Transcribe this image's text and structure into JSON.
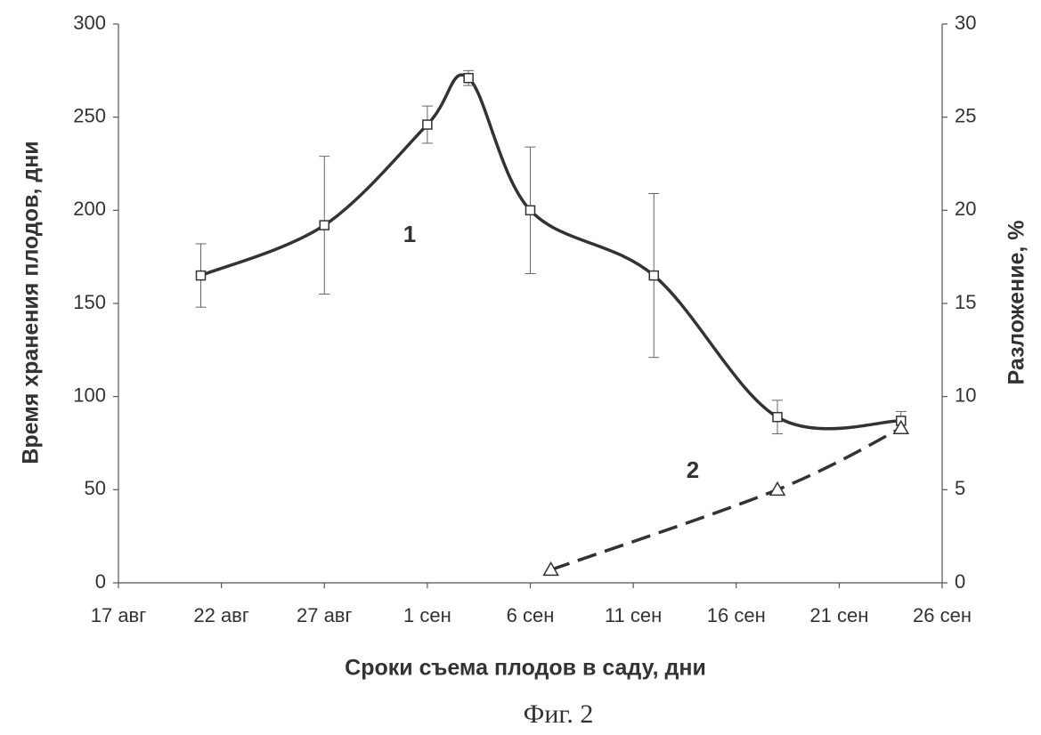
{
  "chart_data": {
    "type": "line",
    "xlabel": "Сроки съема плодов в саду, дни",
    "ylabel": "Время хранения плодов, дни",
    "y2label": "Разложение, %",
    "caption": "Фиг. 2",
    "xlim": [
      "08-17",
      "09-26"
    ],
    "xticks": [
      {
        "value": "08-17",
        "label": "17 авг"
      },
      {
        "value": "08-22",
        "label": "22 авг"
      },
      {
        "value": "08-27",
        "label": "27 авг"
      },
      {
        "value": "09-01",
        "label": "1 сен"
      },
      {
        "value": "09-06",
        "label": "6 сен"
      },
      {
        "value": "09-11",
        "label": "11 сен"
      },
      {
        "value": "09-16",
        "label": "16 сен"
      },
      {
        "value": "09-21",
        "label": "21 сен"
      },
      {
        "value": "09-26",
        "label": "26 сен"
      }
    ],
    "ylim": [
      0,
      300
    ],
    "yticks": [
      0,
      50,
      100,
      150,
      200,
      250,
      300
    ],
    "y2lim": [
      0,
      30
    ],
    "y2ticks": [
      0,
      5,
      10,
      15,
      20,
      25,
      30
    ],
    "series": [
      {
        "name": "1",
        "color": "#333333",
        "marker": "square",
        "dash": false,
        "x": [
          "08-21",
          "08-27",
          "09-01",
          "09-03",
          "09-06",
          "09-12",
          "09-18",
          "09-24"
        ],
        "values": [
          165,
          192,
          246,
          271,
          200,
          165,
          89,
          87
        ],
        "errors": [
          17,
          37,
          10,
          4,
          34,
          44,
          9,
          5
        ]
      },
      {
        "name": "2",
        "color": "#333333",
        "marker": "triangle",
        "dash": true,
        "axis": "y2",
        "x": [
          "09-07",
          "09-18",
          "09-24"
        ],
        "values": [
          0.7,
          5.0,
          8.3
        ]
      }
    ]
  }
}
